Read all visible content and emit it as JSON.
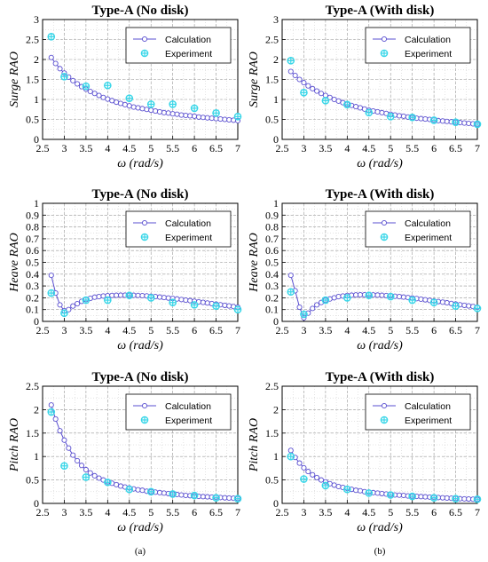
{
  "captions": [
    "(a)",
    "(b)"
  ],
  "styles": {
    "calc_color": "#5a4fd0",
    "exp_color": "#38d6e8",
    "grid_color": "#9a9a9a",
    "legend_position": "top-right"
  },
  "chart_data": [
    {
      "type": "scatter",
      "title": "Type-A (No disk)",
      "xlabel": "ω (rad/s)",
      "ylabel": "Surge RAO",
      "xlim": [
        2.5,
        7
      ],
      "ylim": [
        0,
        3
      ],
      "xticks": [
        "2.5",
        "3",
        "3.5",
        "4",
        "4.5",
        "5",
        "5.5",
        "6",
        "6.5",
        "7"
      ],
      "yticks": [
        "0",
        "0.5",
        "1",
        "1.5",
        "2",
        "2.5",
        "3"
      ],
      "grid": true,
      "legend": [
        "Calculation",
        "Experiment"
      ],
      "series": [
        {
          "name": "Calculation",
          "x": [
            2.7,
            2.8,
            2.9,
            3.0,
            3.1,
            3.2,
            3.3,
            3.4,
            3.5,
            3.6,
            3.7,
            3.8,
            3.9,
            4.0,
            4.1,
            4.2,
            4.3,
            4.4,
            4.5,
            4.6,
            4.7,
            4.8,
            4.9,
            5.0,
            5.1,
            5.2,
            5.3,
            5.4,
            5.5,
            5.6,
            5.7,
            5.8,
            5.9,
            6.0,
            6.1,
            6.2,
            6.3,
            6.4,
            6.5,
            6.6,
            6.7,
            6.8,
            6.9,
            7.0
          ],
          "y": [
            2.05,
            1.9,
            1.77,
            1.66,
            1.56,
            1.47,
            1.39,
            1.32,
            1.26,
            1.2,
            1.15,
            1.1,
            1.05,
            1.01,
            0.97,
            0.93,
            0.9,
            0.87,
            0.84,
            0.81,
            0.79,
            0.77,
            0.75,
            0.73,
            0.71,
            0.69,
            0.67,
            0.66,
            0.64,
            0.63,
            0.61,
            0.6,
            0.59,
            0.58,
            0.56,
            0.55,
            0.54,
            0.53,
            0.52,
            0.51,
            0.5,
            0.49,
            0.48,
            0.47
          ]
        },
        {
          "name": "Experiment",
          "x": [
            2.7,
            3.0,
            3.5,
            4.0,
            4.5,
            5.0,
            5.5,
            6.0,
            6.5,
            7.0
          ],
          "y": [
            2.57,
            1.57,
            1.33,
            1.35,
            1.03,
            0.88,
            0.88,
            0.78,
            0.66,
            0.57
          ]
        }
      ]
    },
    {
      "type": "scatter",
      "title": "Type-A (With disk)",
      "xlabel": "ω (rad/s)",
      "ylabel": "Surge RAO",
      "xlim": [
        2.5,
        7
      ],
      "ylim": [
        0,
        3
      ],
      "xticks": [
        "2.5",
        "3",
        "3.5",
        "4",
        "4.5",
        "5",
        "5.5",
        "6",
        "6.5",
        "7"
      ],
      "yticks": [
        "0",
        "0.5",
        "1",
        "1.5",
        "2",
        "2.5",
        "3"
      ],
      "grid": true,
      "legend": [
        "Calculation",
        "Experiment"
      ],
      "series": [
        {
          "name": "Calculation",
          "x": [
            2.7,
            2.8,
            2.9,
            3.0,
            3.1,
            3.2,
            3.3,
            3.4,
            3.5,
            3.6,
            3.7,
            3.8,
            3.9,
            4.0,
            4.1,
            4.2,
            4.3,
            4.4,
            4.5,
            4.6,
            4.7,
            4.8,
            4.9,
            5.0,
            5.1,
            5.2,
            5.3,
            5.4,
            5.5,
            5.6,
            5.7,
            5.8,
            5.9,
            6.0,
            6.1,
            6.2,
            6.3,
            6.4,
            6.5,
            6.6,
            6.7,
            6.8,
            6.9,
            7.0
          ],
          "y": [
            1.7,
            1.6,
            1.5,
            1.42,
            1.34,
            1.27,
            1.21,
            1.15,
            1.1,
            1.05,
            1.0,
            0.96,
            0.92,
            0.88,
            0.85,
            0.82,
            0.79,
            0.76,
            0.73,
            0.71,
            0.69,
            0.67,
            0.65,
            0.63,
            0.61,
            0.59,
            0.58,
            0.56,
            0.55,
            0.53,
            0.52,
            0.51,
            0.5,
            0.49,
            0.47,
            0.46,
            0.45,
            0.44,
            0.43,
            0.42,
            0.41,
            0.4,
            0.39,
            0.38
          ]
        },
        {
          "name": "Experiment",
          "x": [
            2.7,
            3.0,
            3.5,
            4.0,
            4.5,
            5.0,
            5.5,
            6.0,
            6.5,
            7.0
          ],
          "y": [
            1.97,
            1.17,
            0.97,
            0.87,
            0.67,
            0.57,
            0.55,
            0.48,
            0.43,
            0.38
          ]
        }
      ]
    },
    {
      "type": "scatter",
      "title": "Type-A (No disk)",
      "xlabel": "ω (rad/s)",
      "ylabel": "Heave RAO",
      "xlim": [
        2.5,
        7
      ],
      "ylim": [
        0,
        1
      ],
      "xticks": [
        "2.5",
        "3",
        "3.5",
        "4",
        "4.5",
        "5",
        "5.5",
        "6",
        "6.5",
        "7"
      ],
      "yticks": [
        "0",
        "0.1",
        "0.2",
        "0.3",
        "0.4",
        "0.5",
        "0.6",
        "0.7",
        "0.8",
        "0.9",
        "1"
      ],
      "grid": true,
      "legend": [
        "Calculation",
        "Experiment"
      ],
      "series": [
        {
          "name": "Calculation",
          "x": [
            2.7,
            2.8,
            2.9,
            3.0,
            3.1,
            3.2,
            3.3,
            3.4,
            3.5,
            3.6,
            3.7,
            3.8,
            3.9,
            4.0,
            4.1,
            4.2,
            4.3,
            4.4,
            4.5,
            4.6,
            4.7,
            4.8,
            4.9,
            5.0,
            5.1,
            5.2,
            5.3,
            5.4,
            5.5,
            5.6,
            5.7,
            5.8,
            5.9,
            6.0,
            6.1,
            6.2,
            6.3,
            6.4,
            6.5,
            6.6,
            6.7,
            6.8,
            6.9,
            7.0
          ],
          "y": [
            0.39,
            0.24,
            0.14,
            0.09,
            0.1,
            0.13,
            0.15,
            0.17,
            0.185,
            0.195,
            0.205,
            0.21,
            0.215,
            0.218,
            0.22,
            0.221,
            0.222,
            0.222,
            0.222,
            0.221,
            0.22,
            0.218,
            0.216,
            0.213,
            0.21,
            0.206,
            0.202,
            0.198,
            0.194,
            0.19,
            0.185,
            0.18,
            0.176,
            0.171,
            0.166,
            0.161,
            0.156,
            0.151,
            0.146,
            0.141,
            0.136,
            0.131,
            0.126,
            0.12
          ]
        },
        {
          "name": "Experiment",
          "x": [
            2.7,
            3.0,
            3.5,
            4.0,
            4.5,
            5.0,
            5.5,
            6.0,
            6.5,
            7.0
          ],
          "y": [
            0.24,
            0.07,
            0.18,
            0.18,
            0.22,
            0.2,
            0.16,
            0.14,
            0.13,
            0.1
          ]
        }
      ]
    },
    {
      "type": "scatter",
      "title": "Type-A (With disk)",
      "xlabel": "ω (rad/s)",
      "ylabel": "Heave RAO",
      "xlim": [
        2.5,
        7
      ],
      "ylim": [
        0,
        1
      ],
      "xticks": [
        "2.5",
        "3",
        "3.5",
        "4",
        "4.5",
        "5",
        "5.5",
        "6",
        "6.5",
        "7"
      ],
      "yticks": [
        "0",
        "0.1",
        "0.2",
        "0.3",
        "0.4",
        "0.5",
        "0.6",
        "0.7",
        "0.8",
        "0.9",
        "1"
      ],
      "grid": true,
      "legend": [
        "Calculation",
        "Experiment"
      ],
      "series": [
        {
          "name": "Calculation",
          "x": [
            2.7,
            2.8,
            2.9,
            3.0,
            3.1,
            3.2,
            3.3,
            3.4,
            3.5,
            3.6,
            3.7,
            3.8,
            3.9,
            4.0,
            4.1,
            4.2,
            4.3,
            4.4,
            4.5,
            4.6,
            4.7,
            4.8,
            4.9,
            5.0,
            5.1,
            5.2,
            5.3,
            5.4,
            5.5,
            5.6,
            5.7,
            5.8,
            5.9,
            6.0,
            6.1,
            6.2,
            6.3,
            6.4,
            6.5,
            6.6,
            6.7,
            6.8,
            6.9,
            7.0
          ],
          "y": [
            0.39,
            0.26,
            0.12,
            0.03,
            0.07,
            0.11,
            0.14,
            0.16,
            0.18,
            0.19,
            0.2,
            0.21,
            0.215,
            0.22,
            0.222,
            0.224,
            0.225,
            0.225,
            0.225,
            0.224,
            0.223,
            0.221,
            0.219,
            0.216,
            0.213,
            0.21,
            0.206,
            0.202,
            0.198,
            0.193,
            0.188,
            0.183,
            0.178,
            0.173,
            0.168,
            0.163,
            0.158,
            0.152,
            0.147,
            0.141,
            0.136,
            0.131,
            0.126,
            0.12
          ]
        },
        {
          "name": "Experiment",
          "x": [
            2.7,
            3.0,
            3.5,
            4.0,
            4.5,
            5.0,
            5.5,
            6.0,
            6.5,
            7.0
          ],
          "y": [
            0.25,
            0.06,
            0.18,
            0.2,
            0.22,
            0.21,
            0.18,
            0.16,
            0.13,
            0.11
          ]
        }
      ]
    },
    {
      "type": "scatter",
      "title": "Type-A (No disk)",
      "xlabel": "ω (rad/s)",
      "ylabel": "Pitch RAO",
      "xlim": [
        2.5,
        7
      ],
      "ylim": [
        0,
        2.5
      ],
      "xticks": [
        "2.5",
        "3",
        "3.5",
        "4",
        "4.5",
        "5",
        "5.5",
        "6",
        "6.5",
        "7"
      ],
      "yticks": [
        "0",
        "0.5",
        "1",
        "1.5",
        "2",
        "2.5"
      ],
      "grid": true,
      "legend": [
        "Calculation",
        "Experiment"
      ],
      "series": [
        {
          "name": "Calculation",
          "x": [
            2.7,
            2.8,
            2.9,
            3.0,
            3.1,
            3.2,
            3.3,
            3.4,
            3.5,
            3.6,
            3.7,
            3.8,
            3.9,
            4.0,
            4.1,
            4.2,
            4.3,
            4.4,
            4.5,
            4.6,
            4.7,
            4.8,
            4.9,
            5.0,
            5.1,
            5.2,
            5.3,
            5.4,
            5.5,
            5.6,
            5.7,
            5.8,
            5.9,
            6.0,
            6.1,
            6.2,
            6.3,
            6.4,
            6.5,
            6.6,
            6.7,
            6.8,
            6.9,
            7.0
          ],
          "y": [
            2.1,
            1.8,
            1.55,
            1.35,
            1.18,
            1.03,
            0.91,
            0.81,
            0.72,
            0.65,
            0.59,
            0.54,
            0.5,
            0.46,
            0.43,
            0.4,
            0.37,
            0.35,
            0.33,
            0.31,
            0.29,
            0.28,
            0.26,
            0.25,
            0.24,
            0.23,
            0.22,
            0.21,
            0.2,
            0.19,
            0.18,
            0.17,
            0.165,
            0.16,
            0.15,
            0.145,
            0.14,
            0.135,
            0.13,
            0.125,
            0.12,
            0.115,
            0.11,
            0.105
          ]
        },
        {
          "name": "Experiment",
          "x": [
            2.7,
            3.0,
            3.5,
            4.0,
            4.5,
            5.0,
            5.5,
            6.0,
            6.5,
            7.0
          ],
          "y": [
            1.95,
            0.8,
            0.56,
            0.45,
            0.3,
            0.25,
            0.2,
            0.17,
            0.12,
            0.1
          ]
        }
      ]
    },
    {
      "type": "scatter",
      "title": "Type-A (With disk)",
      "xlabel": "ω (rad/s)",
      "ylabel": "Pitch RAO",
      "xlim": [
        2.5,
        7
      ],
      "ylim": [
        0,
        2.5
      ],
      "xticks": [
        "2.5",
        "3",
        "3.5",
        "4",
        "4.5",
        "5",
        "5.5",
        "6",
        "6.5",
        "7"
      ],
      "yticks": [
        "0",
        "0.5",
        "1",
        "1.5",
        "2",
        "2.5"
      ],
      "grid": true,
      "legend": [
        "Calculation",
        "Experiment"
      ],
      "series": [
        {
          "name": "Calculation",
          "x": [
            2.7,
            2.8,
            2.9,
            3.0,
            3.1,
            3.2,
            3.3,
            3.4,
            3.5,
            3.6,
            3.7,
            3.8,
            3.9,
            4.0,
            4.1,
            4.2,
            4.3,
            4.4,
            4.5,
            4.6,
            4.7,
            4.8,
            4.9,
            5.0,
            5.1,
            5.2,
            5.3,
            5.4,
            5.5,
            5.6,
            5.7,
            5.8,
            5.9,
            6.0,
            6.1,
            6.2,
            6.3,
            6.4,
            6.5,
            6.6,
            6.7,
            6.8,
            6.9,
            7.0
          ],
          "y": [
            1.13,
            0.98,
            0.86,
            0.76,
            0.68,
            0.61,
            0.55,
            0.5,
            0.46,
            0.42,
            0.39,
            0.36,
            0.34,
            0.32,
            0.3,
            0.28,
            0.27,
            0.25,
            0.24,
            0.23,
            0.22,
            0.21,
            0.2,
            0.19,
            0.18,
            0.175,
            0.17,
            0.16,
            0.155,
            0.15,
            0.145,
            0.14,
            0.135,
            0.13,
            0.125,
            0.12,
            0.115,
            0.11,
            0.105,
            0.1,
            0.097,
            0.094,
            0.09,
            0.087
          ]
        },
        {
          "name": "Experiment",
          "x": [
            2.7,
            3.0,
            3.5,
            4.0,
            4.5,
            5.0,
            5.5,
            6.0,
            6.5,
            7.0
          ],
          "y": [
            1.0,
            0.52,
            0.38,
            0.3,
            0.22,
            0.18,
            0.15,
            0.12,
            0.1,
            0.09
          ]
        }
      ]
    }
  ]
}
